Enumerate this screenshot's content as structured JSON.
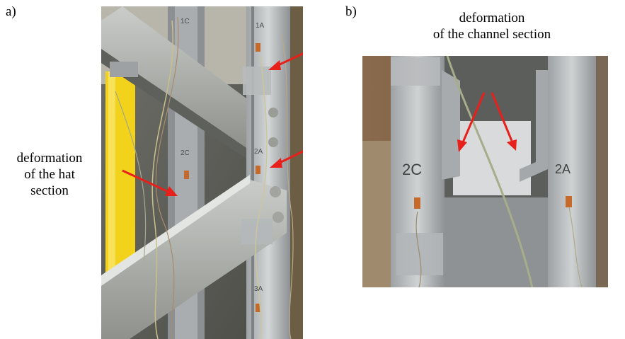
{
  "panel_a": {
    "label": "a)",
    "caption_lines": [
      "deformation",
      "of the hat",
      "section"
    ],
    "gauge_labels": [
      "1A",
      "1C",
      "2A",
      "2C",
      "3A"
    ]
  },
  "panel_b": {
    "label": "b)",
    "caption_lines": [
      "deformation",
      "of the channel section"
    ],
    "gauge_labels": [
      "2C",
      "2A"
    ]
  },
  "colors": {
    "arrow": "#e8201c",
    "steel": "#b9bcbe",
    "yellow_post": "#f2d21a"
  }
}
